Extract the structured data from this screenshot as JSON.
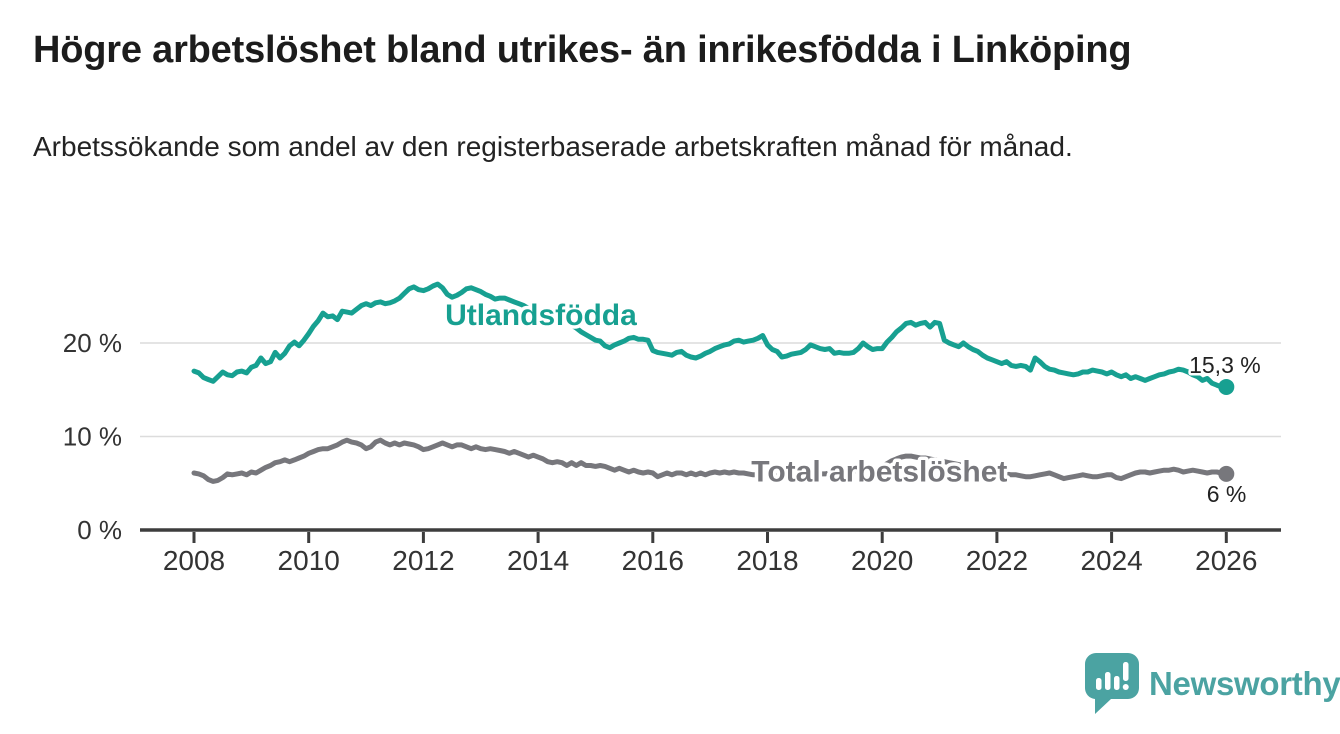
{
  "header": {
    "title": "Högre arbetslöshet bland utrikes- än inrikesfödda i Linköping",
    "subtitle": "Arbetssökande som andel av den registerbaserade arbetskraften månad för månad."
  },
  "branding": {
    "name": "Newsworthy",
    "logo_icon": "speech-bubble-bar-chart",
    "logo_color": "#4BA3A2"
  },
  "colors": {
    "background": "#ffffff",
    "title_text": "#1c1c1c",
    "body_text": "#232323",
    "axis_line": "#3d3d3d",
    "axis_label": "#333333",
    "gridline": "#dcdcdc",
    "value_label": "#222222",
    "series_foreign_born": "#17A091",
    "series_total": "#77777C"
  },
  "chart_data": {
    "type": "line",
    "title": "Högre arbetslöshet bland utrikes- än inrikesfödda i Linköping",
    "subtitle": "Arbetssökande som andel av den registerbaserade arbetskraften månad för månad.",
    "grid": "horizontal",
    "legend_position": "inline-labels",
    "x_unit": "year (monthly resolution)",
    "y_unit": "percent",
    "xlim": [
      2007.06,
      2026.94
    ],
    "ylim": [
      0,
      28
    ],
    "x_ticks": [
      2008,
      2010,
      2012,
      2014,
      2016,
      2018,
      2020,
      2022,
      2024,
      2026
    ],
    "y_ticks": [
      {
        "value": 0,
        "label": "0 %",
        "gridline": false
      },
      {
        "value": 10,
        "label": "10 %",
        "gridline": true
      },
      {
        "value": 20,
        "label": "20 %",
        "gridline": true
      }
    ],
    "series": [
      {
        "name": "Utlandsfödda",
        "color": "#17A091",
        "start_year": 2008,
        "points_per_year": 12,
        "label": {
          "text": "Utlandsfödda",
          "x": 2014.05,
          "y": 21.9,
          "anchor": "middle"
        },
        "end_label": {
          "text": "15,3 %",
          "x": 2026.6,
          "y": 16.8,
          "anchor": "end"
        },
        "end_value": 15.3,
        "values": [
          17.0,
          16.8,
          16.3,
          16.1,
          15.9,
          16.4,
          16.9,
          16.6,
          16.5,
          16.9,
          17.0,
          16.8,
          17.4,
          17.6,
          18.4,
          17.8,
          18.0,
          19.0,
          18.4,
          18.9,
          19.7,
          20.1,
          19.7,
          20.3,
          21.0,
          21.8,
          22.4,
          23.2,
          22.8,
          22.9,
          22.5,
          23.4,
          23.3,
          23.2,
          23.6,
          24.0,
          24.2,
          24.0,
          24.3,
          24.4,
          24.2,
          24.3,
          24.5,
          24.8,
          25.3,
          25.8,
          26.0,
          25.7,
          25.6,
          25.8,
          26.1,
          26.3,
          25.9,
          25.2,
          24.9,
          25.1,
          25.4,
          25.8,
          25.9,
          25.7,
          25.5,
          25.2,
          25.0,
          24.7,
          24.8,
          24.8,
          24.6,
          24.4,
          24.2,
          24.0,
          23.7,
          23.5,
          23.4,
          23.2,
          23.0,
          22.8,
          22.6,
          22.4,
          22.2,
          21.9,
          21.6,
          21.2,
          20.9,
          20.6,
          20.3,
          20.2,
          19.7,
          19.5,
          19.8,
          20.0,
          20.2,
          20.5,
          20.6,
          20.4,
          20.4,
          20.3,
          19.2,
          19.0,
          18.9,
          18.8,
          18.7,
          19.0,
          19.1,
          18.7,
          18.5,
          18.4,
          18.6,
          18.9,
          19.1,
          19.4,
          19.6,
          19.8,
          19.9,
          20.2,
          20.3,
          20.1,
          20.2,
          20.3,
          20.5,
          20.8,
          19.8,
          19.3,
          19.1,
          18.5,
          18.6,
          18.8,
          18.9,
          19.0,
          19.3,
          19.8,
          19.6,
          19.4,
          19.3,
          19.4,
          18.9,
          19.0,
          18.9,
          18.9,
          19.0,
          19.4,
          20.0,
          19.6,
          19.3,
          19.4,
          19.4,
          20.1,
          20.6,
          21.2,
          21.6,
          22.1,
          22.2,
          21.9,
          22.1,
          22.2,
          21.7,
          22.2,
          22.1,
          20.3,
          20.0,
          19.8,
          19.6,
          20.0,
          19.6,
          19.3,
          19.1,
          18.7,
          18.4,
          18.2,
          18.0,
          17.8,
          18.0,
          17.6,
          17.5,
          17.6,
          17.5,
          17.1,
          18.4,
          18.0,
          17.5,
          17.2,
          17.1,
          16.9,
          16.8,
          16.7,
          16.6,
          16.7,
          16.9,
          16.9,
          17.1,
          17.0,
          16.9,
          16.7,
          16.9,
          16.6,
          16.4,
          16.6,
          16.2,
          16.4,
          16.2,
          16.0,
          16.2,
          16.4,
          16.6,
          16.7,
          16.9,
          17.0,
          17.2,
          17.1,
          16.9,
          16.6,
          16.4,
          16.0,
          16.2,
          15.7,
          15.5,
          15.3,
          15.3
        ]
      },
      {
        "name": "Total arbetslöshet",
        "color": "#77777C",
        "start_year": 2008,
        "points_per_year": 12,
        "label": {
          "text": "Total arbetslöshet",
          "x": 2019.95,
          "y": 5.2,
          "anchor": "middle"
        },
        "end_label": {
          "text": "6 %",
          "x": 2026.35,
          "y": 3.0,
          "anchor": "end"
        },
        "end_value": 6.0,
        "values": [
          6.1,
          6.0,
          5.8,
          5.4,
          5.2,
          5.3,
          5.6,
          6.0,
          5.9,
          6.0,
          6.1,
          5.9,
          6.2,
          6.1,
          6.4,
          6.7,
          6.9,
          7.2,
          7.3,
          7.5,
          7.3,
          7.5,
          7.7,
          7.9,
          8.2,
          8.4,
          8.6,
          8.7,
          8.7,
          8.9,
          9.1,
          9.4,
          9.6,
          9.4,
          9.3,
          9.1,
          8.7,
          8.9,
          9.4,
          9.6,
          9.3,
          9.1,
          9.3,
          9.1,
          9.3,
          9.2,
          9.1,
          8.9,
          8.6,
          8.7,
          8.9,
          9.1,
          9.3,
          9.1,
          8.9,
          9.1,
          9.1,
          8.9,
          8.7,
          8.9,
          8.7,
          8.6,
          8.7,
          8.6,
          8.5,
          8.4,
          8.2,
          8.4,
          8.2,
          8.0,
          7.8,
          8.0,
          7.8,
          7.6,
          7.3,
          7.2,
          7.3,
          7.2,
          6.9,
          7.2,
          6.9,
          7.2,
          6.9,
          6.9,
          6.8,
          6.9,
          6.8,
          6.6,
          6.4,
          6.6,
          6.4,
          6.2,
          6.4,
          6.2,
          6.1,
          6.2,
          6.1,
          5.7,
          5.9,
          6.1,
          5.9,
          6.1,
          6.1,
          5.9,
          6.1,
          5.9,
          6.1,
          5.9,
          6.1,
          6.2,
          6.1,
          6.2,
          6.1,
          6.2,
          6.1,
          6.1,
          6.0,
          5.9,
          5.9,
          5.9,
          5.9,
          5.8,
          5.8,
          5.9,
          5.9,
          5.8,
          5.8,
          5.9,
          5.9,
          6.0,
          6.0,
          6.0,
          6.0,
          6.1,
          6.1,
          6.2,
          6.2,
          6.3,
          6.3,
          6.4,
          6.4,
          6.5,
          6.5,
          6.6,
          6.8,
          7.1,
          7.4,
          7.6,
          7.8,
          7.9,
          7.9,
          7.8,
          7.7,
          7.7,
          7.6,
          7.5,
          7.4,
          7.3,
          7.2,
          7.1,
          7.0,
          6.9,
          6.8,
          6.7,
          6.6,
          6.5,
          6.4,
          6.3,
          6.2,
          6.1,
          6.0,
          5.9,
          5.9,
          5.8,
          5.7,
          5.7,
          5.8,
          5.9,
          6.0,
          6.1,
          5.9,
          5.7,
          5.5,
          5.6,
          5.7,
          5.8,
          5.9,
          5.8,
          5.7,
          5.7,
          5.8,
          5.9,
          5.9,
          5.6,
          5.5,
          5.7,
          5.9,
          6.1,
          6.2,
          6.2,
          6.1,
          6.2,
          6.3,
          6.4,
          6.4,
          6.5,
          6.4,
          6.2,
          6.3,
          6.4,
          6.3,
          6.2,
          6.1,
          6.2,
          6.2,
          6.1,
          6.0
        ]
      }
    ]
  }
}
